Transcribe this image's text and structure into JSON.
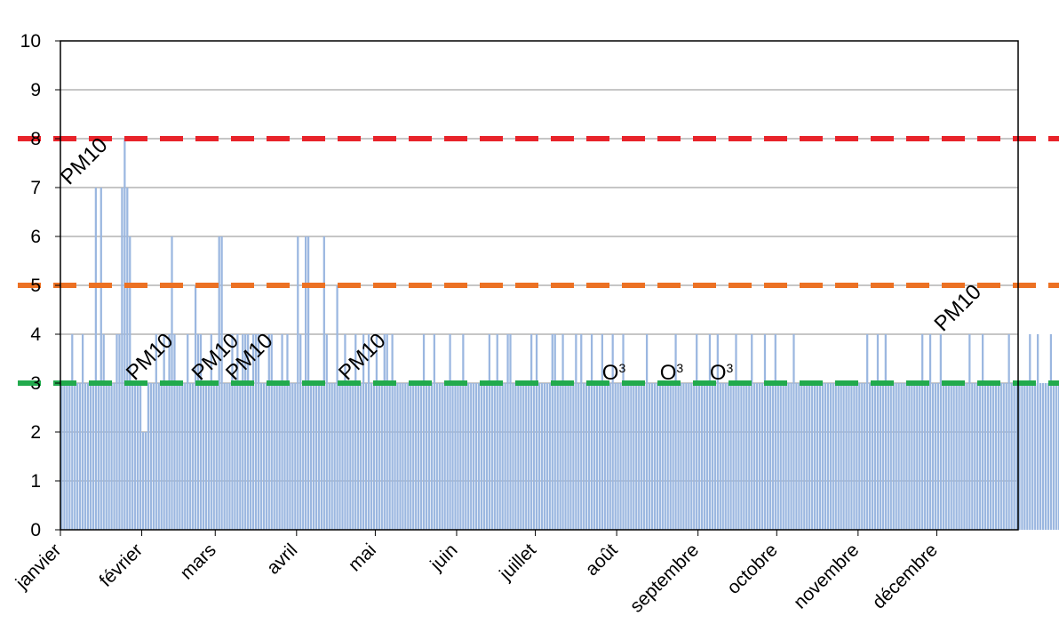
{
  "chart_data": {
    "type": "bar",
    "title": "",
    "xlabel": "",
    "ylabel": "",
    "ylim": [
      0,
      10
    ],
    "y_ticks": [
      "0",
      "1",
      "2",
      "3",
      "4",
      "5",
      "6",
      "7",
      "8",
      "9",
      "10"
    ],
    "months": [
      "janvier",
      "février",
      "mars",
      "avril",
      "mai",
      "juin",
      "juillet",
      "août",
      "septembre",
      "octobre",
      "novembre",
      "décembre"
    ],
    "month_day_offsets": [
      0,
      31,
      59,
      90,
      120,
      151,
      181,
      212,
      243,
      273,
      304,
      334
    ],
    "days_in_year": 365,
    "grid": true,
    "colors": {
      "bars": "#9bb7e0",
      "grid": "#8c8c8c",
      "axis": "#000000",
      "threshold_high": "#e8232a",
      "threshold_mid": "#ec7123",
      "threshold_low": "#22aa4d"
    },
    "thresholds": [
      {
        "value": 8,
        "color": "#e8232a"
      },
      {
        "value": 5,
        "color": "#ec7123"
      },
      {
        "value": 3,
        "color": "#22aa4d"
      }
    ],
    "values": [
      3,
      3,
      3,
      3,
      4,
      3,
      3,
      3,
      4,
      3,
      3,
      3,
      3,
      7,
      3,
      7,
      4,
      3,
      3,
      3,
      3,
      4,
      4,
      7,
      8,
      7,
      6,
      3,
      3,
      3,
      3,
      2,
      2,
      3,
      3,
      3,
      4,
      3,
      3,
      4,
      3,
      4,
      6,
      4,
      3,
      3,
      3,
      3,
      4,
      3,
      3,
      5,
      4,
      4,
      3,
      3,
      3,
      4,
      3,
      3,
      6,
      6,
      3,
      3,
      3,
      4,
      3,
      4,
      3,
      4,
      4,
      4,
      3,
      4,
      4,
      4,
      3,
      3,
      3,
      4,
      4,
      3,
      3,
      3,
      4,
      3,
      4,
      3,
      3,
      3,
      6,
      4,
      3,
      6,
      6,
      3,
      3,
      3,
      3,
      3,
      6,
      4,
      3,
      3,
      3,
      5,
      3,
      3,
      4,
      3,
      3,
      3,
      4,
      3,
      3,
      4,
      3,
      4,
      3,
      3,
      4,
      3,
      3,
      4,
      4,
      3,
      4,
      3,
      3,
      3,
      3,
      3,
      3,
      3,
      3,
      3,
      3,
      3,
      4,
      3,
      3,
      3,
      4,
      3,
      3,
      3,
      3,
      3,
      4,
      3,
      3,
      3,
      3,
      4,
      3,
      3,
      3,
      3,
      3,
      3,
      3,
      3,
      3,
      4,
      3,
      3,
      4,
      3,
      3,
      3,
      4,
      4,
      3,
      3,
      3,
      3,
      3,
      3,
      3,
      4,
      3,
      4,
      3,
      3,
      3,
      3,
      3,
      4,
      4,
      3,
      3,
      4,
      3,
      3,
      3,
      3,
      4,
      3,
      4,
      3,
      3,
      3,
      4,
      3,
      3,
      3,
      4,
      3,
      3,
      3,
      4,
      3,
      3,
      3,
      4,
      3,
      3,
      3,
      3,
      3,
      3,
      3,
      3,
      4,
      3,
      3,
      3,
      3,
      3,
      3,
      3,
      3,
      3,
      3,
      4,
      3,
      3,
      3,
      3,
      3,
      3,
      3,
      4,
      3,
      3,
      3,
      3,
      4,
      3,
      3,
      4,
      3,
      3,
      3,
      3,
      3,
      3,
      4,
      3,
      3,
      3,
      3,
      3,
      4,
      3,
      3,
      3,
      3,
      4,
      3,
      3,
      3,
      4,
      3,
      3,
      3,
      3,
      3,
      3,
      4,
      3,
      3,
      3,
      3,
      3,
      3,
      3,
      3,
      3,
      3,
      3,
      3,
      3,
      3,
      3,
      3,
      3,
      3,
      3,
      3,
      3,
      3,
      3,
      3,
      3,
      3,
      3,
      4,
      3,
      3,
      3,
      4,
      3,
      3,
      4,
      3,
      3,
      3,
      3,
      3,
      3,
      3,
      3,
      3,
      3,
      3,
      3,
      3,
      4,
      3,
      3,
      4,
      3,
      3,
      3,
      4,
      3,
      3,
      3,
      3,
      3,
      3,
      3,
      3,
      3,
      3,
      4,
      3,
      3,
      3,
      3,
      4,
      3,
      3,
      3,
      3,
      3,
      3,
      3,
      3,
      3,
      4,
      3,
      3,
      3,
      3,
      3,
      3,
      3,
      4,
      3,
      3,
      4,
      3,
      3,
      3,
      3,
      4,
      3,
      3,
      3,
      3,
      3
    ],
    "annotations": [
      {
        "text": "PM10",
        "day": 13,
        "rotate": -45
      },
      {
        "text": "PM10",
        "day": 38,
        "rotate": -45
      },
      {
        "text": "PM10",
        "day": 63,
        "rotate": -45
      },
      {
        "text": "PM10",
        "day": 76,
        "rotate": -45
      },
      {
        "text": "PM10",
        "day": 119,
        "rotate": -45
      },
      {
        "text": "O3",
        "day": 208,
        "rotate": 0
      },
      {
        "text": "O3",
        "day": 230,
        "rotate": 0
      },
      {
        "text": "O3",
        "day": 249,
        "rotate": 0
      },
      {
        "text": "PM10",
        "day": 346,
        "rotate": -45
      }
    ]
  }
}
